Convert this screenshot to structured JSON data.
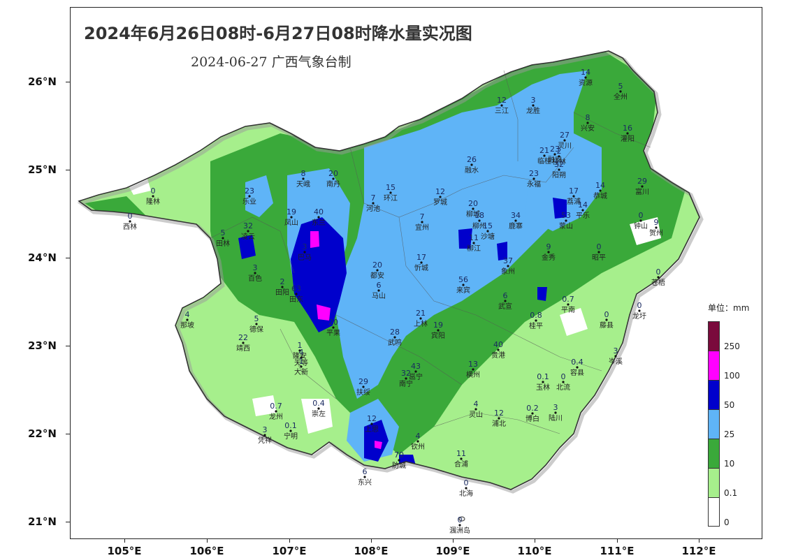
{
  "title": "2024年6月26日08时-6月27日08时降水量实况图",
  "subtitle": "2024-06-27  广西气象台制",
  "y_ticks": [
    "26°N",
    "25°N",
    "24°N",
    "23°N",
    "22°N",
    "21°N"
  ],
  "x_ticks": [
    "105°E",
    "106°E",
    "107°E",
    "108°E",
    "109°E",
    "110°E",
    "111°E",
    "112°E"
  ],
  "legend": {
    "title": "单位：mm",
    "levels": [
      {
        "label": "250",
        "color": "#7a0a3c"
      },
      {
        "label": "100",
        "color": "#ff00ff"
      },
      {
        "label": "50",
        "color": "#0000cc"
      },
      {
        "label": "25",
        "color": "#5fb4f7"
      },
      {
        "label": "10",
        "color": "#3aa93a"
      },
      {
        "label": "0.1",
        "color": "#a6ef8c"
      },
      {
        "label": "0",
        "color": "#ffffff"
      }
    ]
  },
  "stations": [
    {
      "name": "资源",
      "value": "14"
    },
    {
      "name": "全州",
      "value": "5"
    },
    {
      "name": "三江",
      "value": "12"
    },
    {
      "name": "龙胜",
      "value": "3"
    },
    {
      "name": "兴安",
      "value": "8"
    },
    {
      "name": "灌阳",
      "value": "16"
    },
    {
      "name": "灵川",
      "value": "27"
    },
    {
      "name": "融安",
      "value": "23"
    },
    {
      "name": "临桂",
      "value": "21"
    },
    {
      "name": "桂林",
      "value": "2"
    },
    {
      "name": "融水",
      "value": "26"
    },
    {
      "name": "阳朔",
      "value": "32"
    },
    {
      "name": "永福",
      "value": "23"
    },
    {
      "name": "天峨",
      "value": "8"
    },
    {
      "name": "南丹",
      "value": "20"
    },
    {
      "name": "恭城",
      "value": "14"
    },
    {
      "name": "富川",
      "value": "29"
    },
    {
      "name": "荔浦",
      "value": "17"
    },
    {
      "name": "隆林",
      "value": "0"
    },
    {
      "name": "乐业",
      "value": "23"
    },
    {
      "name": "环江",
      "value": "15"
    },
    {
      "name": "河池",
      "value": "7"
    },
    {
      "name": "罗城",
      "value": "12"
    },
    {
      "name": "平乐",
      "value": "14"
    },
    {
      "name": "西林",
      "value": "0"
    },
    {
      "name": "凤山",
      "value": "19"
    },
    {
      "name": "东兰",
      "value": "40"
    },
    {
      "name": "柳城",
      "value": "20"
    },
    {
      "name": "鹿寨",
      "value": "34"
    },
    {
      "name": "钟山",
      "value": "0"
    },
    {
      "name": "贺州",
      "value": "9"
    },
    {
      "name": "田林",
      "value": "5"
    },
    {
      "name": "凌云",
      "value": "32"
    },
    {
      "name": "宜州",
      "value": "7"
    },
    {
      "name": "柳州",
      "value": "18"
    },
    {
      "name": "沙塘",
      "value": "15"
    },
    {
      "name": "蒙山",
      "value": "53"
    },
    {
      "name": "金秀",
      "value": "9"
    },
    {
      "name": "昭平",
      "value": "0"
    },
    {
      "name": "巴马",
      "value": "3"
    },
    {
      "name": "柳江",
      "value": "11"
    },
    {
      "name": "象州",
      "value": "37"
    },
    {
      "name": "忻城",
      "value": "17"
    },
    {
      "name": "都安",
      "value": "20"
    },
    {
      "name": "百色",
      "value": "3"
    },
    {
      "name": "田阳",
      "value": "2"
    },
    {
      "name": "马山",
      "value": "6"
    },
    {
      "name": "来宾",
      "value": "56"
    },
    {
      "name": "苍梧",
      "value": "0"
    },
    {
      "name": "平南",
      "value": "0.7"
    },
    {
      "name": "武宣",
      "value": "6"
    },
    {
      "name": "田东",
      "value": "63"
    },
    {
      "name": "上林",
      "value": "21"
    },
    {
      "name": "藤县",
      "value": "0"
    },
    {
      "name": "龙圩",
      "value": "0"
    },
    {
      "name": "那坡",
      "value": "4"
    },
    {
      "name": "德保",
      "value": "5"
    },
    {
      "name": "平果",
      "value": "20"
    },
    {
      "name": "宾阳",
      "value": "19"
    },
    {
      "name": "桂平",
      "value": "0.8"
    },
    {
      "name": "靖西",
      "value": "22"
    },
    {
      "name": "隆安",
      "value": "1"
    },
    {
      "name": "武鸣",
      "value": "28"
    },
    {
      "name": "贵港",
      "value": "40"
    },
    {
      "name": "天等",
      "value": "4"
    },
    {
      "name": "大新",
      "value": "1"
    },
    {
      "name": "横州",
      "value": "13"
    },
    {
      "name": "岑溪",
      "value": "3"
    },
    {
      "name": "容县",
      "value": "0.4"
    },
    {
      "name": "邕宁",
      "value": "43"
    },
    {
      "name": "南宁",
      "value": "32"
    },
    {
      "name": "玉林",
      "value": "0.1"
    },
    {
      "name": "北流",
      "value": "0"
    },
    {
      "name": "扶绥",
      "value": "29"
    },
    {
      "name": "崇左",
      "value": "0.4"
    },
    {
      "name": "灵山",
      "value": "4"
    },
    {
      "name": "浦北",
      "value": "12"
    },
    {
      "name": "博白",
      "value": "0.2"
    },
    {
      "name": "陆川",
      "value": "3"
    },
    {
      "name": "龙州",
      "value": "0.7"
    },
    {
      "name": "宁明",
      "value": "0.1"
    },
    {
      "name": "凭祥",
      "value": "3"
    },
    {
      "name": "上思",
      "value": "12"
    },
    {
      "name": "钦州",
      "value": "4"
    },
    {
      "name": "合浦",
      "value": "11"
    },
    {
      "name": "防城",
      "value": "70"
    },
    {
      "name": "东兴",
      "value": "6"
    },
    {
      "name": "北海",
      "value": "0"
    },
    {
      "name": "涠洲岛",
      "value": "0"
    }
  ]
}
